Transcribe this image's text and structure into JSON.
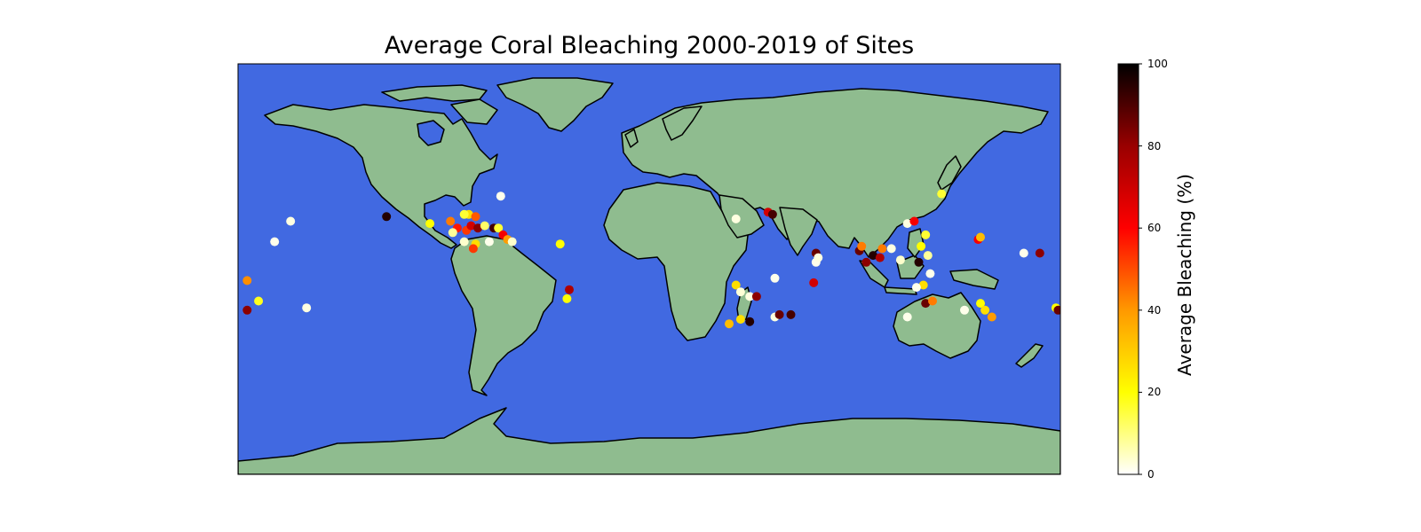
{
  "title": "Average Coral Bleaching 2000-2019 of Sites",
  "colors": {
    "ocean": "#4169e1",
    "land": "#8fbc8f",
    "coastline": "#000000",
    "colormap": "hot_r"
  },
  "map": {
    "projection": "PlateCarree",
    "lon_range": [
      -180,
      180
    ],
    "lat_range": [
      -90,
      90
    ]
  },
  "colorbar": {
    "label": "Average Bleaching (%)",
    "range": [
      0,
      100
    ],
    "ticks": [
      "0",
      "20",
      "40",
      "60",
      "80",
      "100"
    ]
  },
  "chart_data": {
    "type": "scatter",
    "value_field": "average_bleaching_percent",
    "points": [
      {
        "lon": -115,
        "lat": 23,
        "value": 95
      },
      {
        "lon": -65,
        "lat": 32,
        "value": 2
      },
      {
        "lon": -96,
        "lat": 20,
        "value": 25
      },
      {
        "lon": -87,
        "lat": 21,
        "value": 45
      },
      {
        "lon": -84,
        "lat": 18,
        "value": 60
      },
      {
        "lon": -80,
        "lat": 17,
        "value": 55
      },
      {
        "lon": -78,
        "lat": 19,
        "value": 70
      },
      {
        "lon": -75,
        "lat": 18,
        "value": 80
      },
      {
        "lon": -72,
        "lat": 19,
        "value": 15
      },
      {
        "lon": -68,
        "lat": 18,
        "value": 90
      },
      {
        "lon": -66,
        "lat": 18,
        "value": 20
      },
      {
        "lon": -64,
        "lat": 15,
        "value": 65
      },
      {
        "lon": -62,
        "lat": 13,
        "value": 40
      },
      {
        "lon": -86,
        "lat": 16,
        "value": 10
      },
      {
        "lon": -81,
        "lat": 12,
        "value": 5
      },
      {
        "lon": -76,
        "lat": 11,
        "value": 30
      },
      {
        "lon": -70,
        "lat": 12,
        "value": 2
      },
      {
        "lon": -77,
        "lat": 9,
        "value": 55
      },
      {
        "lon": -60,
        "lat": 12,
        "value": 5
      },
      {
        "lon": -79,
        "lat": 24,
        "value": 30
      },
      {
        "lon": -76,
        "lat": 23,
        "value": 50
      },
      {
        "lon": -81,
        "lat": 24,
        "value": 20
      },
      {
        "lon": -39,
        "lat": 11,
        "value": 25
      },
      {
        "lon": -157,
        "lat": 21,
        "value": 3
      },
      {
        "lon": -164,
        "lat": 12,
        "value": 2
      },
      {
        "lon": -176,
        "lat": -5,
        "value": 42
      },
      {
        "lon": -171,
        "lat": -14,
        "value": 22
      },
      {
        "lon": -176,
        "lat": -18,
        "value": 80
      },
      {
        "lon": -150,
        "lat": -17,
        "value": 3
      },
      {
        "lon": -35,
        "lat": -9,
        "value": 75
      },
      {
        "lon": -36,
        "lat": -13,
        "value": 25
      },
      {
        "lon": 38,
        "lat": -7,
        "value": 30
      },
      {
        "lon": 40,
        "lat": -10,
        "value": 4
      },
      {
        "lon": 44,
        "lat": -12,
        "value": 3
      },
      {
        "lon": 47,
        "lat": -12,
        "value": 80
      },
      {
        "lon": 40,
        "lat": -22,
        "value": 30
      },
      {
        "lon": 35,
        "lat": -24,
        "value": 35
      },
      {
        "lon": 44,
        "lat": -23,
        "value": 95
      },
      {
        "lon": 55,
        "lat": -21,
        "value": 3
      },
      {
        "lon": 57,
        "lat": -20,
        "value": 85
      },
      {
        "lon": 62,
        "lat": -20,
        "value": 90
      },
      {
        "lon": 55,
        "lat": -4,
        "value": 2
      },
      {
        "lon": 72,
        "lat": -6,
        "value": 70
      },
      {
        "lon": 73,
        "lat": 3,
        "value": 2
      },
      {
        "lon": 73,
        "lat": 7,
        "value": 85
      },
      {
        "lon": 74,
        "lat": 5,
        "value": 3
      },
      {
        "lon": 52,
        "lat": 25,
        "value": 70
      },
      {
        "lon": 54,
        "lat": 24,
        "value": 90
      },
      {
        "lon": 38,
        "lat": 22,
        "value": 3
      },
      {
        "lon": 92,
        "lat": 8,
        "value": 85
      },
      {
        "lon": 93,
        "lat": 10,
        "value": 45
      },
      {
        "lon": 95,
        "lat": 3,
        "value": 80
      },
      {
        "lon": 98,
        "lat": 6,
        "value": 95
      },
      {
        "lon": 101,
        "lat": 5,
        "value": 75
      },
      {
        "lon": 102,
        "lat": 9,
        "value": 45
      },
      {
        "lon": 106,
        "lat": 9,
        "value": 3
      },
      {
        "lon": 110,
        "lat": 4,
        "value": 5
      },
      {
        "lon": 113,
        "lat": 20,
        "value": 3
      },
      {
        "lon": 116,
        "lat": 21,
        "value": 65
      },
      {
        "lon": 121,
        "lat": 15,
        "value": 20
      },
      {
        "lon": 119,
        "lat": 10,
        "value": 25
      },
      {
        "lon": 122,
        "lat": 6,
        "value": 10
      },
      {
        "lon": 118,
        "lat": 3,
        "value": 95
      },
      {
        "lon": 123,
        "lat": -2,
        "value": 2
      },
      {
        "lon": 120,
        "lat": -7,
        "value": 30
      },
      {
        "lon": 117,
        "lat": -8,
        "value": 2
      },
      {
        "lon": 113,
        "lat": -21,
        "value": 2
      },
      {
        "lon": 121,
        "lat": -15,
        "value": 85
      },
      {
        "lon": 124,
        "lat": -14,
        "value": 45
      },
      {
        "lon": 128,
        "lat": 33,
        "value": 20
      },
      {
        "lon": 144,
        "lat": 13,
        "value": 65
      },
      {
        "lon": 145,
        "lat": 14,
        "value": 35
      },
      {
        "lon": 145,
        "lat": -15,
        "value": 25
      },
      {
        "lon": 147,
        "lat": -18,
        "value": 30
      },
      {
        "lon": 150,
        "lat": -21,
        "value": 40
      },
      {
        "lon": 138,
        "lat": -18,
        "value": 2
      },
      {
        "lon": 164,
        "lat": 7,
        "value": 2
      },
      {
        "lon": 171,
        "lat": 7,
        "value": 80
      },
      {
        "lon": 178,
        "lat": -17,
        "value": 25
      },
      {
        "lon": 179,
        "lat": -18,
        "value": 85
      }
    ]
  }
}
